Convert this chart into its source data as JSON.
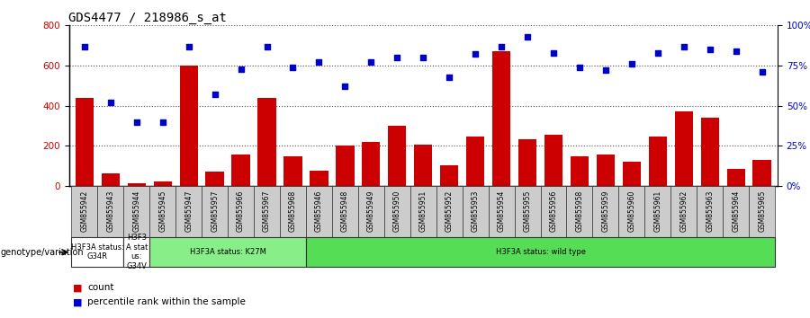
{
  "title": "GDS4477 / 218986_s_at",
  "samples": [
    "GSM855942",
    "GSM855943",
    "GSM855944",
    "GSM855945",
    "GSM855947",
    "GSM855957",
    "GSM855966",
    "GSM855967",
    "GSM855968",
    "GSM855946",
    "GSM855948",
    "GSM855949",
    "GSM855950",
    "GSM855951",
    "GSM855952",
    "GSM855953",
    "GSM855954",
    "GSM855955",
    "GSM855956",
    "GSM855958",
    "GSM855959",
    "GSM855960",
    "GSM855961",
    "GSM855962",
    "GSM855963",
    "GSM855964",
    "GSM855965"
  ],
  "counts": [
    440,
    65,
    15,
    25,
    600,
    70,
    155,
    440,
    150,
    75,
    200,
    220,
    300,
    205,
    105,
    245,
    670,
    235,
    255,
    150,
    155,
    120,
    245,
    370,
    340,
    85,
    130
  ],
  "percentiles": [
    87,
    52,
    40,
    40,
    87,
    57,
    73,
    87,
    74,
    77,
    62,
    77,
    80,
    80,
    68,
    82,
    87,
    93,
    83,
    74,
    72,
    76,
    83,
    87,
    85,
    84,
    71
  ],
  "bar_color": "#cc0000",
  "dot_color": "#0000cc",
  "ylim_left": [
    0,
    800
  ],
  "ylim_right": [
    0,
    100
  ],
  "yticks_left": [
    0,
    200,
    400,
    600,
    800
  ],
  "yticks_right": [
    0,
    25,
    50,
    75,
    100
  ],
  "yticklabels_right": [
    "0%",
    "25%",
    "50%",
    "75%",
    "100%"
  ],
  "groups": [
    {
      "label": "H3F3A status:\nG34R",
      "start": 0,
      "end": 2,
      "color": "#ffffff",
      "border": "#333333"
    },
    {
      "label": "H3F3\nA stat\nus:\nG34V",
      "start": 2,
      "end": 3,
      "color": "#ffffff",
      "border": "#333333"
    },
    {
      "label": "H3F3A status: K27M",
      "start": 3,
      "end": 9,
      "color": "#88ee88",
      "border": "#333333"
    },
    {
      "label": "H3F3A status: wild type",
      "start": 9,
      "end": 27,
      "color": "#55dd55",
      "border": "#333333"
    }
  ],
  "genotype_label": "genotype/variation",
  "legend_count": "count",
  "legend_pct": "percentile rank within the sample",
  "bg_color": "#ffffff",
  "plot_bg": "#ffffff",
  "grid_color": "#555555",
  "cell_bg": "#cccccc",
  "cell_border": "#333333"
}
